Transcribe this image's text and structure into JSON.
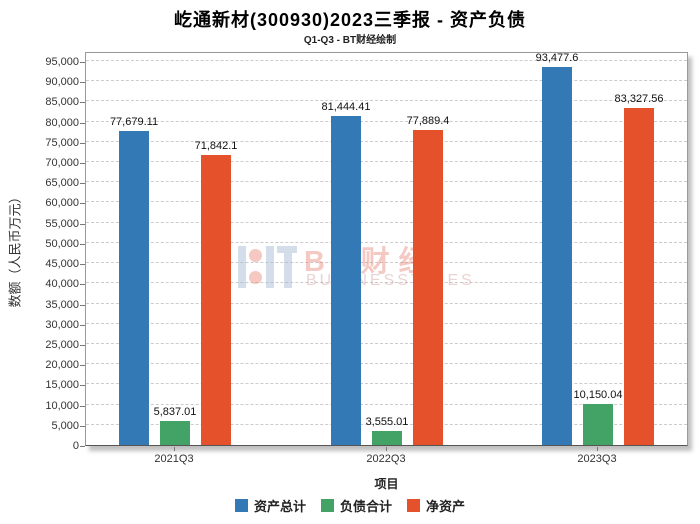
{
  "title": "屹通新材(300930)2023三季报 - 资产负债",
  "subtitle": "Q1-Q3 - BT财经绘制",
  "watermark": {
    "text": "BT财经",
    "subtext": "BUSINESSTIMES"
  },
  "chart_data": {
    "type": "bar",
    "title": "屹通新材(300930)2023三季报 - 资产负债",
    "subtitle": "Q1-Q3 - BT财经绘制",
    "categories": [
      "2021Q3",
      "2022Q3",
      "2023Q3"
    ],
    "series": [
      {
        "name": "资产总计",
        "color": "#3379b5",
        "values": [
          77679.11,
          81444.41,
          93477.6
        ],
        "labels": [
          "77,679.11",
          "81,444.41",
          "93,477.6"
        ]
      },
      {
        "name": "负债合计",
        "color": "#43a266",
        "values": [
          5837.01,
          3555.01,
          10150.04
        ],
        "labels": [
          "5,837.01",
          "3,555.01",
          "10,150.04"
        ]
      },
      {
        "name": "净资产",
        "color": "#e5512a",
        "values": [
          71842.1,
          77889.4,
          83327.56
        ],
        "labels": [
          "71,842.1",
          "77,889.4",
          "83,327.56"
        ]
      }
    ],
    "xlabel": "项目",
    "ylabel": "数额（人民币万元）",
    "ylim": [
      0,
      95000
    ],
    "ytick_step": 5000,
    "grid": true,
    "legend_position": "bottom"
  }
}
